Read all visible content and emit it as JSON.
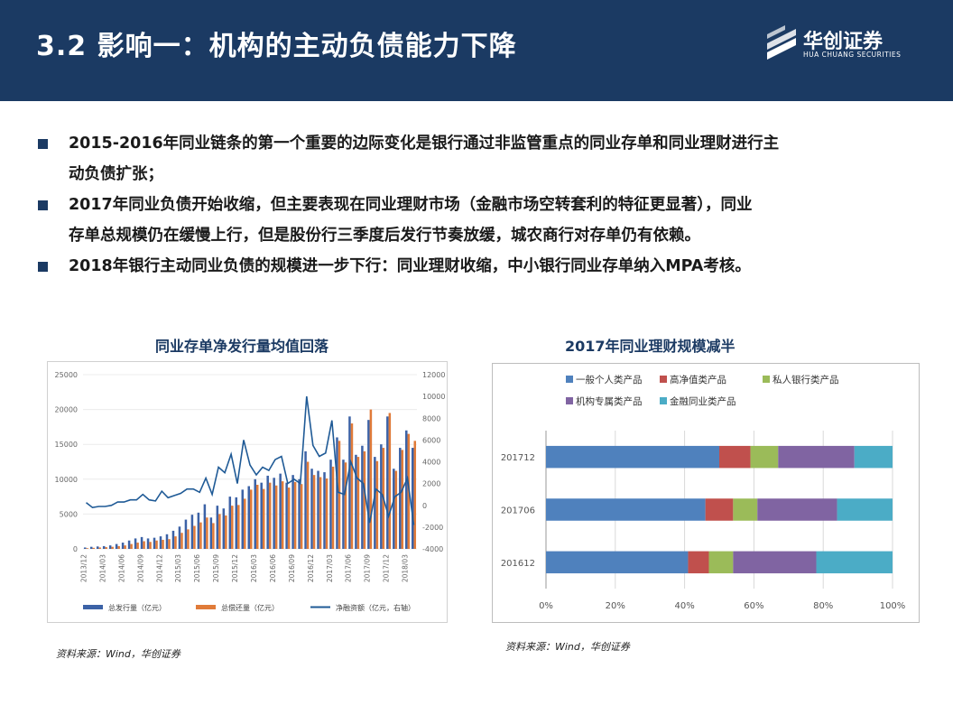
{
  "header": {
    "title": "3.2 影响一：机构的主动负债能力下降",
    "logo_cn": "华创证券",
    "logo_en": "HUA CHUANG SECURITIES",
    "bg_color": "#1b3a63"
  },
  "bullets": [
    {
      "line1": "2015-2016年同业链条的第一个重要的边际变化是银行通过非监管重点的同业存单和同业理财进行主",
      "line2": "动负债扩张；"
    },
    {
      "line1": "2017年同业负债开始收缩，但主要表现在同业理财市场（金融市场空转套利的特征更显著），同业",
      "line2": "存单总规模仍在缓慢上行，但是股份行三季度后发行节奏放缓，城农商行对存单仍有依赖。"
    },
    {
      "line1": "2018年银行主动同业负债的规模进一步下行：同业理财收缩，中小银行同业存单纳入MPA考核。",
      "line2": ""
    }
  ],
  "left_chart": {
    "title": "同业存单净发行量均值回落",
    "source": "资料来源：Wind，华创证券"
  },
  "right_chart": {
    "title": "2017年同业理财规模减半",
    "source": "资料来源：Wind，华创证券"
  },
  "chart_data": [
    {
      "type": "bar",
      "categories": [
        "2013/12",
        "2014/01",
        "2014/02",
        "2014/03",
        "2014/04",
        "2014/05",
        "2014/06",
        "2014/07",
        "2014/08",
        "2014/09",
        "2014/10",
        "2014/11",
        "2014/12",
        "2015/01",
        "2015/02",
        "2015/03",
        "2015/04",
        "2015/05",
        "2015/06",
        "2015/07",
        "2015/08",
        "2015/09",
        "2015/10",
        "2015/11",
        "2015/12",
        "2016/01",
        "2016/02",
        "2016/03",
        "2016/04",
        "2016/05",
        "2016/06",
        "2016/07",
        "2016/08",
        "2016/09",
        "2016/10",
        "2016/11",
        "2016/12",
        "2017/01",
        "2017/02",
        "2017/03",
        "2017/04",
        "2017/05",
        "2017/06",
        "2017/07",
        "2017/08",
        "2017/09",
        "2017/10",
        "2017/11",
        "2017/12",
        "2018/01",
        "2018/02",
        "2018/03",
        "2018/04"
      ],
      "tick_labels": [
        "2013/12",
        "2014/03",
        "2014/06",
        "2014/09",
        "2014/12",
        "2015/03",
        "2015/06",
        "2015/09",
        "2015/12",
        "2016/03",
        "2016/06",
        "2016/09",
        "2016/12",
        "2017/03",
        "2017/06",
        "2017/09",
        "2017/12",
        "2018/03"
      ],
      "series": [
        {
          "name": "总发行量（亿元）",
          "axis": "left",
          "color": "#3c62a6",
          "values": [
            200,
            300,
            350,
            400,
            500,
            700,
            900,
            1200,
            1500,
            1700,
            1500,
            1600,
            1800,
            2100,
            2600,
            3200,
            4200,
            4900,
            5200,
            6400,
            4500,
            6200,
            5800,
            7500,
            7400,
            8500,
            9000,
            10000,
            9500,
            10500,
            10200,
            10800,
            9500,
            10600,
            10000,
            14000,
            11500,
            11200,
            11000,
            12800,
            16000,
            12800,
            19000,
            13500,
            14800,
            18500,
            13200,
            15000,
            19000,
            11500,
            14500,
            17000,
            14500
          ]
        },
        {
          "name": "总偿还量（亿元）",
          "axis": "left",
          "color": "#e07b39",
          "values": [
            100,
            150,
            200,
            250,
            300,
            400,
            500,
            700,
            900,
            1100,
            1000,
            1200,
            1300,
            1400,
            1800,
            2300,
            2800,
            3300,
            3800,
            4500,
            3700,
            5000,
            4800,
            6200,
            6300,
            7200,
            8500,
            9200,
            8600,
            9500,
            9100,
            9700,
            8800,
            9600,
            9300,
            12500,
            10600,
            10300,
            10100,
            11800,
            15500,
            12400,
            18000,
            13200,
            14000,
            20000,
            12600,
            14500,
            19500,
            11200,
            14200,
            16500,
            15500
          ]
        },
        {
          "name": "净融资额（亿元，右轴）",
          "axis": "right",
          "type": "line",
          "color": "#1f5a96",
          "values": [
            250,
            -200,
            -100,
            -100,
            0,
            300,
            300,
            500,
            500,
            1000,
            500,
            400,
            1300,
            700,
            900,
            1100,
            1500,
            1500,
            1200,
            2500,
            1000,
            3500,
            3000,
            4700,
            2000,
            6000,
            3700,
            2800,
            3500,
            3200,
            4200,
            4500,
            2000,
            2400,
            2000,
            10000,
            5500,
            4500,
            4800,
            7800,
            1200,
            1000,
            4000,
            2500,
            2000,
            -1600,
            1500,
            1000,
            -1000,
            800,
            1200,
            2500,
            -1800
          ]
        }
      ],
      "ylim_left": [
        0,
        25000
      ],
      "yticks_left": [
        "0",
        "5000",
        "10000",
        "15000",
        "20000",
        "25000"
      ],
      "ylim_right": [
        -4000,
        12000
      ],
      "yticks_right": [
        "-4000",
        "-2000",
        "0",
        "2000",
        "4000",
        "6000",
        "8000",
        "10000",
        "12000"
      ],
      "legend": [
        "总发行量（亿元）",
        "总偿还量（亿元）",
        "净融资额（亿元，右轴）"
      ],
      "legend_position": "bottom"
    },
    {
      "type": "bar",
      "orientation": "horizontal",
      "stacked": "percent",
      "categories": [
        "201712",
        "201706",
        "201612"
      ],
      "series": [
        {
          "name": "一般个人类产品",
          "color": "#4f81bd",
          "values": [
            50,
            46,
            41
          ]
        },
        {
          "name": "高净值类产品",
          "color": "#c0504d",
          "values": [
            9,
            8,
            6
          ]
        },
        {
          "name": "私人银行类产品",
          "color": "#9bbb59",
          "values": [
            8,
            7,
            7
          ]
        },
        {
          "name": "机构专属类产品",
          "color": "#8064a2",
          "values": [
            22,
            23,
            24
          ]
        },
        {
          "name": "金融同业类产品",
          "color": "#4bacc6",
          "values": [
            11,
            16,
            22
          ]
        }
      ],
      "xlim": [
        0,
        100
      ],
      "xticks": [
        "0%",
        "20%",
        "40%",
        "60%",
        "80%",
        "100%"
      ],
      "legend_position": "top"
    }
  ]
}
